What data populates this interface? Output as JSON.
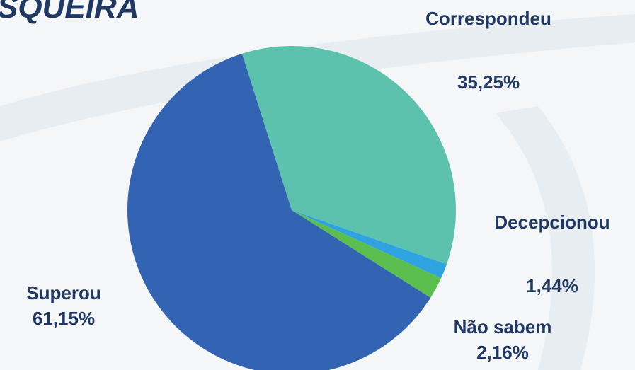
{
  "chart_data": {
    "type": "pie",
    "title": "SQUEIRA",
    "categories": [
      "Correspondeu",
      "Decepcionou",
      "Não sabem",
      "Superou"
    ],
    "values": [
      35.25,
      1.44,
      2.16,
      61.15
    ],
    "value_labels": [
      "35,25%",
      "1,44%",
      "2,16%",
      "61,15%"
    ],
    "colors": [
      "#5cc2ad",
      "#2fa3e0",
      "#5bbf4f",
      "#3364b4"
    ]
  }
}
